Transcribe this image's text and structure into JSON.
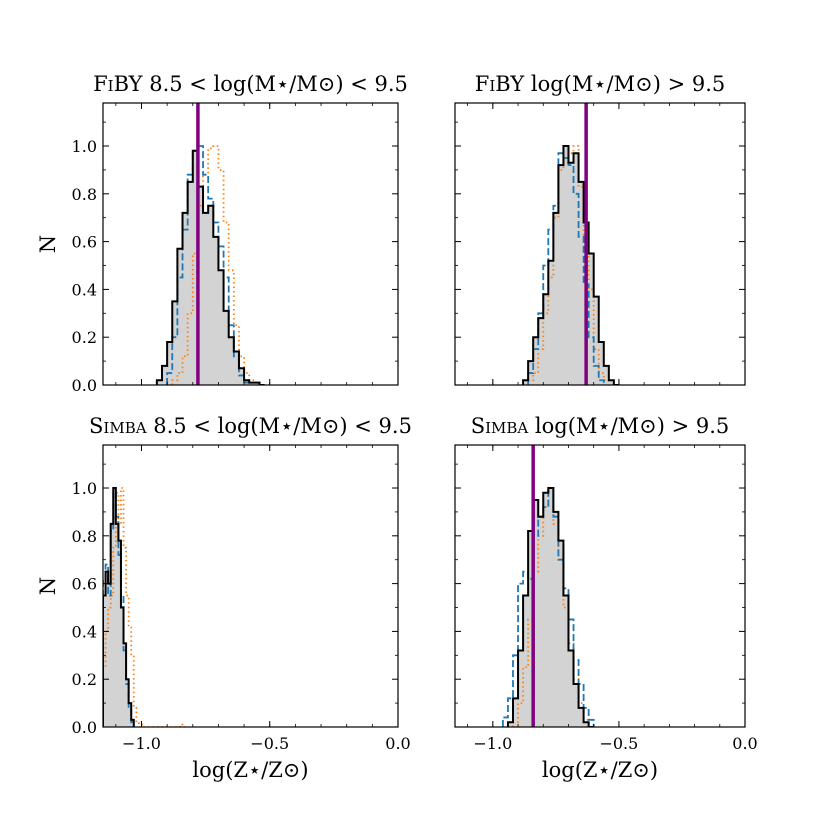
{
  "chart_data": [
    {
      "type": "histogram",
      "title_prefix": "FiBY",
      "title_mass": "8.5 < log(M⋆/M⊙) < 9.5",
      "xlim": [
        -1.15,
        0.0
      ],
      "ylim": [
        0,
        1.18
      ],
      "xticks": [
        -1.0,
        -0.5,
        0.0
      ],
      "xtick_labels": [
        "",
        "",
        ""
      ],
      "yticks": [
        0.0,
        0.2,
        0.4,
        0.6,
        0.8,
        1.0
      ],
      "ytick_labels": [
        "0.0",
        "0.2",
        "0.4",
        "0.6",
        "0.8",
        "1.0"
      ],
      "ylabel": "N",
      "xlabel": "",
      "vline": -0.78,
      "bin_width": 0.02,
      "series": [
        {
          "name": "gray",
          "style": "filled",
          "edges_start": -0.94,
          "values": [
            0.02,
            0.08,
            0.18,
            0.35,
            0.57,
            0.72,
            0.85,
            0.98,
            0.83,
            0.72,
            0.75,
            0.62,
            0.48,
            0.31,
            0.2,
            0.14,
            0.07,
            0.02,
            0.01,
            0.01,
            0.0
          ]
        },
        {
          "name": "blue",
          "style": "dashed",
          "edges_start": -0.9,
          "values": [
            0.05,
            0.2,
            0.45,
            0.65,
            0.88,
            0.98,
            1.0,
            0.88,
            0.78,
            0.68,
            0.58,
            0.45,
            0.25,
            0.12,
            0.04,
            0.01
          ]
        },
        {
          "name": "orange",
          "style": "dotted",
          "edges_start": -0.88,
          "values": [
            0.02,
            0.05,
            0.12,
            0.3,
            0.55,
            0.75,
            0.88,
            0.99,
            1.0,
            0.9,
            0.68,
            0.48,
            0.25,
            0.12,
            0.05,
            0.02,
            0.01
          ]
        }
      ]
    },
    {
      "type": "histogram",
      "title_prefix": "FiBY",
      "title_mass": "log(M⋆/M⊙) > 9.5",
      "xlim": [
        -1.15,
        0.0
      ],
      "ylim": [
        0,
        1.18
      ],
      "xticks": [
        -1.0,
        -0.5,
        0.0
      ],
      "xtick_labels": [
        "",
        "",
        ""
      ],
      "yticks": [
        0.0,
        0.2,
        0.4,
        0.6,
        0.8,
        1.0
      ],
      "ytick_labels": [
        "",
        "",
        "",
        "",
        "",
        ""
      ],
      "ylabel": "",
      "xlabel": "",
      "vline": -0.63,
      "bin_width": 0.02,
      "series": [
        {
          "name": "gray",
          "style": "filled",
          "edges_start": -0.88,
          "values": [
            0.02,
            0.1,
            0.2,
            0.28,
            0.38,
            0.52,
            0.72,
            0.92,
            1.0,
            0.93,
            0.97,
            0.85,
            0.68,
            0.55,
            0.37,
            0.18,
            0.08,
            0.02,
            0.0
          ]
        },
        {
          "name": "blue",
          "style": "dashed",
          "edges_start": -0.86,
          "values": [
            0.05,
            0.15,
            0.3,
            0.5,
            0.65,
            0.75,
            0.97,
            0.95,
            0.92,
            0.8,
            0.62,
            0.42,
            0.2,
            0.08,
            0.02
          ]
        },
        {
          "name": "orange",
          "style": "dotted",
          "edges_start": -0.86,
          "values": [
            0.02,
            0.05,
            0.15,
            0.3,
            0.45,
            0.7,
            0.9,
            0.93,
            0.97,
            1.0,
            0.83,
            0.63,
            0.4,
            0.15,
            0.05,
            0.02
          ]
        }
      ]
    },
    {
      "type": "histogram",
      "title_prefix": "Simba",
      "title_mass": "8.5 < log(M⋆/M⊙) < 9.5",
      "xlim": [
        -1.15,
        0.0
      ],
      "ylim": [
        0,
        1.18
      ],
      "xticks": [
        -1.0,
        -0.5,
        0.0
      ],
      "xtick_labels": [
        "−1.0",
        "−0.5",
        "0.0"
      ],
      "yticks": [
        0.0,
        0.2,
        0.4,
        0.6,
        0.8,
        1.0
      ],
      "ytick_labels": [
        "0.0",
        "0.2",
        "0.4",
        "0.6",
        "0.8",
        "1.0"
      ],
      "ylabel": "N",
      "xlabel": "log(Z⋆/Z⊙)",
      "vline": null,
      "bin_width": 0.01,
      "series": [
        {
          "name": "gray",
          "style": "filled",
          "edges_start": -1.15,
          "values": [
            0.55,
            0.65,
            0.6,
            0.85,
            1.0,
            0.85,
            0.78,
            0.5,
            0.35,
            0.2,
            0.1,
            0.03
          ]
        },
        {
          "name": "blue",
          "style": "dashed",
          "edges_start": -1.15,
          "values": [
            0.62,
            0.68,
            0.55,
            0.82,
            0.98,
            0.88,
            0.72,
            0.55,
            0.32,
            0.18,
            0.08,
            0.02
          ]
        },
        {
          "name": "orange",
          "style": "dotted",
          "edges_start": -1.15,
          "values": [
            0.25,
            0.4,
            0.5,
            0.55,
            0.75,
            0.98,
            0.85,
            1.0,
            0.75,
            0.55,
            0.42,
            0.3,
            0.08,
            0.02,
            0.01,
            0.01,
            0.0,
            0.0,
            0.0,
            0.0,
            0.0,
            0.0,
            0.0,
            0.0,
            0.0,
            0.0,
            0.0,
            0.0,
            0.0,
            0.0,
            0.01,
            0.0
          ]
        }
      ]
    },
    {
      "type": "histogram",
      "title_prefix": "Simba",
      "title_mass": "log(M⋆/M⊙) > 9.5",
      "xlim": [
        -1.15,
        0.0
      ],
      "ylim": [
        0,
        1.18
      ],
      "xticks": [
        -1.0,
        -0.5,
        0.0
      ],
      "xtick_labels": [
        "−1.0",
        "−0.5",
        "0.0"
      ],
      "yticks": [
        0.0,
        0.2,
        0.4,
        0.6,
        0.8,
        1.0
      ],
      "ytick_labels": [
        "",
        "",
        "",
        "",
        "",
        ""
      ],
      "ylabel": "",
      "xlabel": "log(Z⋆/Z⊙)",
      "vline": -0.84,
      "bin_width": 0.02,
      "series": [
        {
          "name": "gray",
          "style": "filled",
          "edges_start": -0.94,
          "values": [
            0.02,
            0.12,
            0.32,
            0.55,
            0.82,
            0.95,
            0.88,
            0.98,
            1.0,
            0.9,
            0.78,
            0.55,
            0.32,
            0.18,
            0.08,
            0.02,
            0.0
          ]
        },
        {
          "name": "blue",
          "style": "dashed",
          "edges_start": -0.96,
          "values": [
            0.04,
            0.12,
            0.3,
            0.6,
            0.65,
            0.62,
            0.8,
            0.88,
            0.92,
            1.0,
            0.88,
            0.7,
            0.58,
            0.45,
            0.28,
            0.18,
            0.08,
            0.03
          ]
        },
        {
          "name": "orange",
          "style": "dotted",
          "edges_start": -0.92,
          "values": [
            0.02,
            0.1,
            0.25,
            0.45,
            0.65,
            0.8,
            0.92,
            1.0,
            0.85,
            0.7,
            0.5,
            0.35,
            0.2,
            0.1,
            0.03
          ]
        }
      ]
    }
  ],
  "colors": {
    "gray_fill": "#d3d3d3",
    "gray_edge": "#000000",
    "blue": "#1f77b4",
    "orange": "#ff7f0e",
    "vline": "#800080"
  }
}
